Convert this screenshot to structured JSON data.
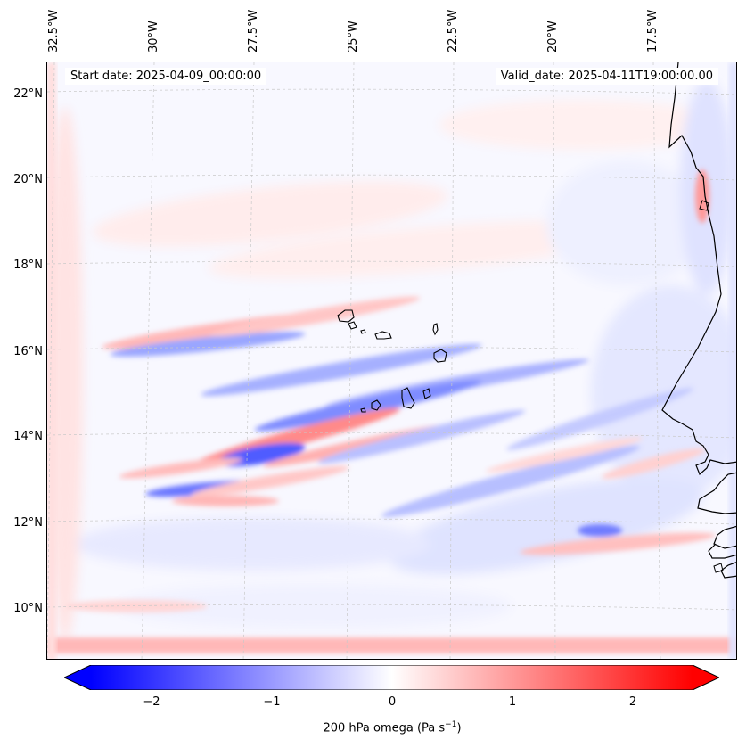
{
  "map": {
    "header": {
      "start_date": "Start date: 2025-04-09_00:00:00",
      "valid_date": "Valid_date: 2025-04-11T19:00:00.00"
    },
    "longitude_labels": [
      "32.5°W",
      "30°W",
      "27.5°W",
      "25°W",
      "22.5°W",
      "20°W",
      "17.5°W"
    ],
    "latitude_labels": [
      "22°N",
      "20°N",
      "18°N",
      "16°N",
      "14°N",
      "12°N",
      "10°N"
    ],
    "lon_range_deg": [
      -33.2,
      -16.0
    ],
    "lat_range_deg": [
      8.9,
      22.8
    ],
    "islands": [
      "Santo Antão",
      "São Vicente",
      "Santa Luzia",
      "São Nicolau",
      "Sal",
      "Boa Vista",
      "Maio",
      "Santiago",
      "Fogo",
      "Brava"
    ],
    "colors": {
      "negative": "#0000ff",
      "zero": "#ffffff",
      "positive": "#ff0000",
      "coast": "#000000",
      "grid": "#c8c8c8"
    }
  },
  "colorbar": {
    "ticks": [
      "−2",
      "−1",
      "0",
      "1",
      "2"
    ],
    "tick_values": [
      -2,
      -1,
      0,
      1,
      2
    ],
    "range": [
      -2.5,
      2.5
    ],
    "label_prefix": "200 hPa omega (Pa s",
    "label_exp": "−1",
    "label_suffix": ")"
  }
}
